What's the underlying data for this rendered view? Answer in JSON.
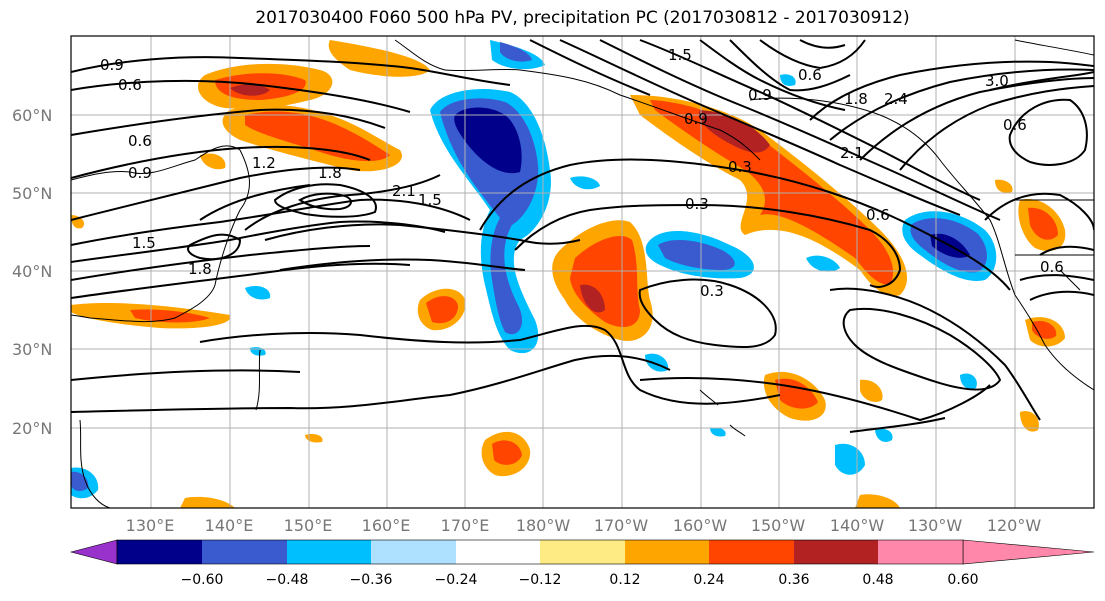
{
  "title": "2017030400 F060 500 hPa PV, precipitation PC (2017030812 - 2017030912)",
  "lat_labels": [
    "60°N",
    "50°N",
    "40°N",
    "30°N",
    "20°N"
  ],
  "lon_labels": [
    "130°E",
    "140°E",
    "150°E",
    "160°E",
    "170°E",
    "180°W",
    "170°W",
    "160°W",
    "150°W",
    "140°W",
    "130°W",
    "120°W"
  ],
  "colorbar": {
    "ticks": [
      "−0.60",
      "−0.48",
      "−0.36",
      "−0.24",
      "−0.12",
      "0.12",
      "0.24",
      "0.36",
      "0.48",
      "0.60"
    ],
    "colors": [
      "#9932cc",
      "#00008b",
      "#3a5bcf",
      "#00bfff",
      "#aee0ff",
      "#ffffff",
      "#ffeb84",
      "#ffa500",
      "#ff4500",
      "#b22222",
      "#ff88aa"
    ]
  },
  "contour_labels": [
    "0.9",
    "0.6",
    "0.6",
    "0.9",
    "1.2",
    "1.8",
    "2.1",
    "1.5",
    "1.5",
    "1.8",
    "0.3",
    "0.3",
    "0.6",
    "0.9",
    "0.3",
    "1.5",
    "0.9",
    "0.6",
    "1.8",
    "2.1",
    "2.4",
    "3.0",
    "0.6",
    "0.6"
  ]
}
